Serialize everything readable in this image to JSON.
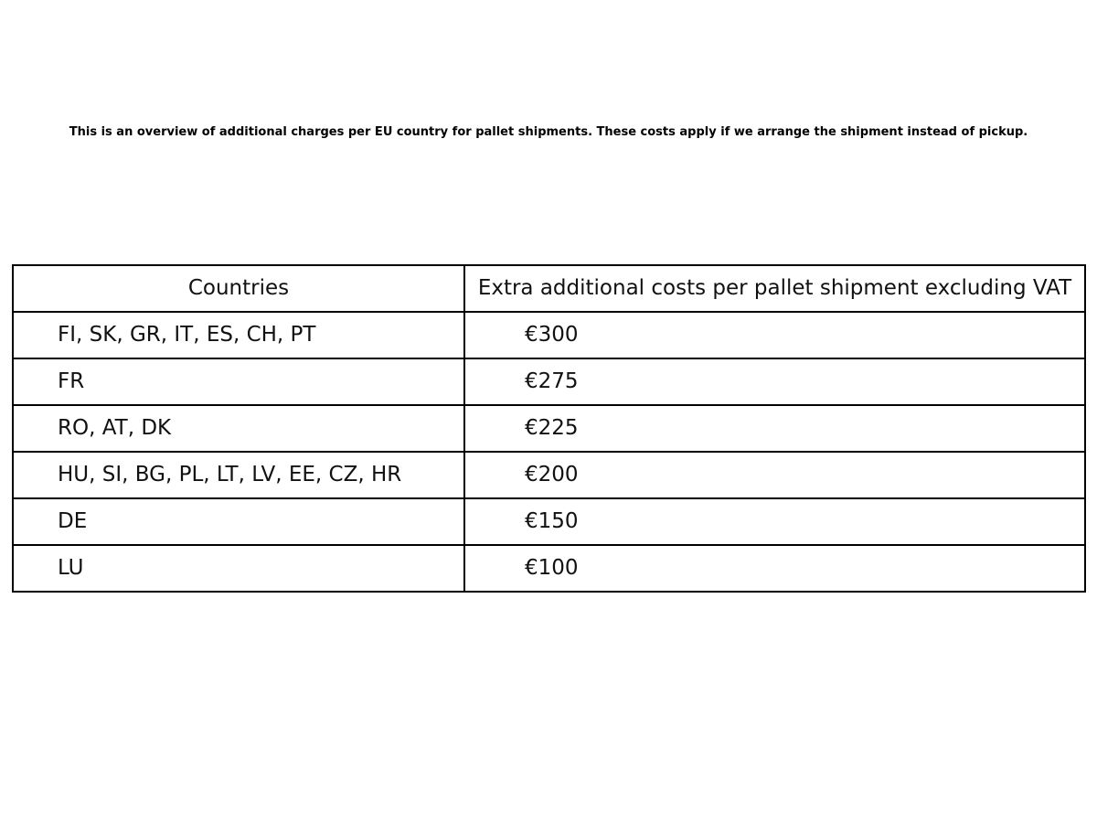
{
  "page": {
    "colors": {
      "background": "#ffffff",
      "text": "#111111",
      "border": "#000000"
    }
  },
  "note": "This is an overview of additional charges per EU country for pallet shipments. These costs apply if we arrange the shipment instead of pickup.",
  "table": {
    "headers": {
      "countries": "Countries",
      "cost": "Extra additional costs per pallet shipment excluding VAT"
    },
    "rows": [
      {
        "countries": "FI, SK, GR, IT, ES, CH, PT",
        "cost": "€300"
      },
      {
        "countries": "FR",
        "cost": "€275"
      },
      {
        "countries": "RO, AT, DK",
        "cost": "€225"
      },
      {
        "countries": "HU, SI, BG, PL, LT, LV, EE, CZ, HR",
        "cost": "€200"
      },
      {
        "countries": "DE",
        "cost": "€150"
      },
      {
        "countries": "LU",
        "cost": "€100"
      }
    ]
  }
}
